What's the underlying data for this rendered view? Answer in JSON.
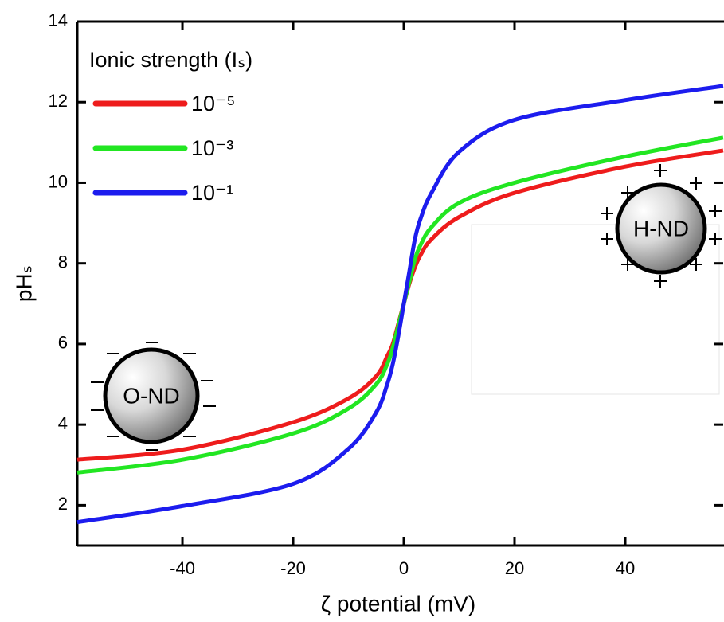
{
  "chart_data": {
    "type": "line",
    "xlabel": "ζ  potential (mV)",
    "ylabel": "pHₛ",
    "legend_title": "Ionic strength (Iₛ)",
    "legend": "upper left",
    "x": [
      -59,
      -40,
      -20,
      -10,
      -5,
      -3,
      -2,
      -1,
      0,
      1,
      2,
      3,
      5,
      10,
      20,
      40,
      57.7
    ],
    "series": [
      {
        "name": "10⁻⁵",
        "color": "#ee1c1c",
        "values": [
          3.13,
          3.38,
          4.06,
          4.65,
          5.2,
          5.7,
          6.0,
          6.5,
          7.0,
          7.5,
          7.9,
          8.2,
          8.6,
          9.15,
          9.75,
          10.4,
          10.8
        ]
      },
      {
        "name": "10⁻³",
        "color": "#22e622",
        "values": [
          2.81,
          3.13,
          3.78,
          4.4,
          5.0,
          5.5,
          5.9,
          6.45,
          7.0,
          7.55,
          8.1,
          8.45,
          8.9,
          9.5,
          10.0,
          10.65,
          11.12
        ]
      },
      {
        "name": "10⁻¹",
        "color": "#1c1cee",
        "values": [
          1.58,
          1.98,
          2.53,
          3.4,
          4.3,
          5.0,
          5.5,
          6.2,
          7.0,
          7.8,
          8.6,
          9.1,
          9.75,
          10.77,
          11.56,
          12.05,
          12.4
        ]
      }
    ],
    "xlim": [
      -59,
      57.7
    ],
    "xticks": [
      -40,
      -20,
      0,
      20,
      40
    ],
    "ylim": [
      1,
      14
    ],
    "yticks": [
      2,
      4,
      6,
      8,
      10,
      12,
      14
    ],
    "annotations": [
      "O-ND",
      "H-ND"
    ]
  }
}
